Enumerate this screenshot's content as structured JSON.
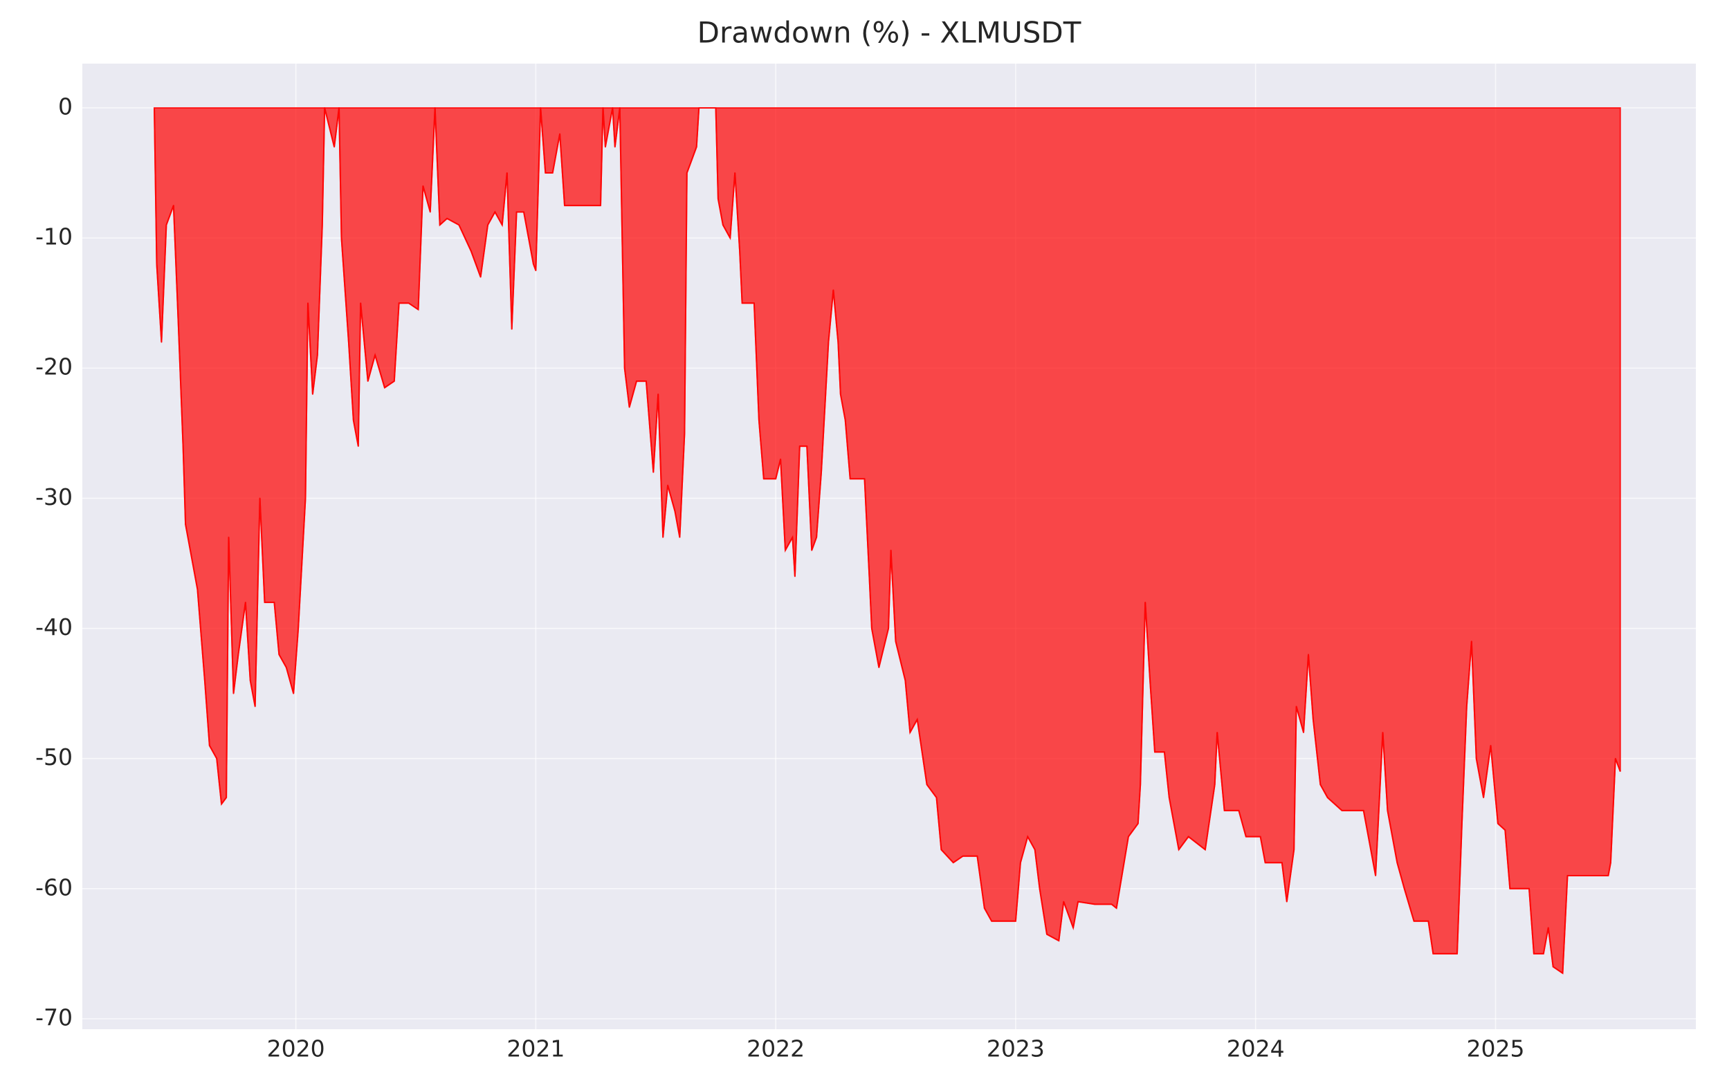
{
  "chart_data": {
    "type": "area",
    "title": "Drawdown (%) - XLMUSDT",
    "x": [
      2019.41,
      2019.42,
      2019.44,
      2019.46,
      2019.49,
      2019.51,
      2019.53,
      2019.54,
      2019.57,
      2019.59,
      2019.62,
      2019.64,
      2019.67,
      2019.69,
      2019.71,
      2019.72,
      2019.74,
      2019.76,
      2019.79,
      2019.81,
      2019.83,
      2019.85,
      2019.87,
      2019.91,
      2019.93,
      2019.96,
      2019.99,
      2020.01,
      2020.04,
      2020.05,
      2020.07,
      2020.09,
      2020.11,
      2020.12,
      2020.16,
      2020.18,
      2020.19,
      2020.22,
      2020.24,
      2020.26,
      2020.27,
      2020.3,
      2020.33,
      2020.37,
      2020.41,
      2020.43,
      2020.47,
      2020.51,
      2020.53,
      2020.56,
      2020.58,
      2020.6,
      2020.63,
      2020.68,
      2020.73,
      2020.77,
      2020.8,
      2020.83,
      2020.86,
      2020.88,
      2020.9,
      2020.92,
      2020.95,
      2020.99,
      2021.0,
      2021.02,
      2021.04,
      2021.07,
      2021.1,
      2021.12,
      2021.19,
      2021.27,
      2021.28,
      2021.29,
      2021.32,
      2021.33,
      2021.35,
      2021.37,
      2021.39,
      2021.42,
      2021.46,
      2021.49,
      2021.51,
      2021.53,
      2021.55,
      2021.58,
      2021.6,
      2021.62,
      2021.63,
      2021.65,
      2021.67,
      2021.68,
      2021.75,
      2021.76,
      2021.78,
      2021.81,
      2021.83,
      2021.85,
      2021.86,
      2021.91,
      2021.93,
      2021.95,
      2022.0,
      2022.02,
      2022.04,
      2022.07,
      2022.08,
      2022.1,
      2022.13,
      2022.15,
      2022.17,
      2022.19,
      2022.22,
      2022.24,
      2022.26,
      2022.27,
      2022.29,
      2022.31,
      2022.37,
      2022.39,
      2022.4,
      2022.43,
      2022.47,
      2022.48,
      2022.5,
      2022.54,
      2022.56,
      2022.59,
      2022.63,
      2022.67,
      2022.69,
      2022.74,
      2022.78,
      2022.84,
      2022.87,
      2022.9,
      2023.0,
      2023.02,
      2023.05,
      2023.08,
      2023.1,
      2023.13,
      2023.18,
      2023.2,
      2023.24,
      2023.26,
      2023.33,
      2023.4,
      2023.42,
      2023.47,
      2023.51,
      2023.52,
      2023.54,
      2023.56,
      2023.58,
      2023.62,
      2023.64,
      2023.68,
      2023.72,
      2023.79,
      2023.83,
      2023.84,
      2023.87,
      2023.93,
      2023.96,
      2024.02,
      2024.04,
      2024.11,
      2024.13,
      2024.16,
      2024.17,
      2024.2,
      2024.22,
      2024.24,
      2024.27,
      2024.3,
      2024.36,
      2024.45,
      2024.47,
      2024.5,
      2024.53,
      2024.55,
      2024.59,
      2024.62,
      2024.66,
      2024.72,
      2024.74,
      2024.84,
      2024.86,
      2024.88,
      2024.9,
      2024.92,
      2024.95,
      2024.98,
      2025.01,
      2025.04,
      2025.06,
      2025.14,
      2025.16,
      2025.2,
      2025.22,
      2025.24,
      2025.28,
      2025.3,
      2025.47,
      2025.48,
      2025.5,
      2025.52
    ],
    "values": [
      0,
      -12,
      -18,
      -9,
      -7.5,
      -16.5,
      -26,
      -32,
      -35,
      -37,
      -44,
      -49,
      -50,
      -53.5,
      -53,
      -33,
      -45,
      -42,
      -38,
      -44,
      -46,
      -30,
      -38,
      -38,
      -42,
      -43,
      -45,
      -40,
      -30,
      -15,
      -22,
      -19,
      -9,
      0,
      -3,
      0,
      -10,
      -18,
      -24,
      -26,
      -15,
      -21,
      -19,
      -21.5,
      -21,
      -15,
      -15,
      -15.5,
      -6,
      -8,
      0,
      -9,
      -8.5,
      -9,
      -11,
      -13,
      -9,
      -8,
      -9,
      -5,
      -17,
      -8,
      -8,
      -12,
      -12.5,
      0,
      -5,
      -5,
      -2,
      -7.5,
      -7.5,
      -7.5,
      0,
      -3,
      0,
      -3,
      0,
      -20,
      -23,
      -21,
      -21,
      -28,
      -22,
      -33,
      -29,
      -31,
      -33,
      -25,
      -5,
      -4,
      -3,
      0,
      0,
      -7,
      -9,
      -10,
      -5,
      -11,
      -15,
      -15,
      -24,
      -28.5,
      -28.5,
      -27,
      -34,
      -33,
      -36,
      -26,
      -26,
      -34,
      -33,
      -28,
      -18,
      -14,
      -18,
      -22,
      -24,
      -28.5,
      -28.5,
      -36,
      -40,
      -43,
      -40,
      -34,
      -41,
      -44,
      -48,
      -47,
      -52,
      -53,
      -57,
      -58,
      -57.5,
      -57.5,
      -61.5,
      -62.5,
      -62.5,
      -58,
      -56,
      -57,
      -60,
      -63.5,
      -64,
      -61,
      -63,
      -61,
      -61.2,
      -61.2,
      -61.5,
      -56,
      -55,
      -52,
      -38,
      -44,
      -49.5,
      -49.5,
      -53,
      -57,
      -56,
      -57,
      -52,
      -48,
      -54,
      -54,
      -56,
      -56,
      -58,
      -58,
      -61,
      -57,
      -46,
      -48,
      -42,
      -47,
      -52,
      -53,
      -54,
      -54,
      -56,
      -59,
      -48,
      -54,
      -58,
      -60,
      -62.5,
      -62.5,
      -65,
      -65,
      -55,
      -46,
      -41,
      -50,
      -53,
      -49,
      -55,
      -55.5,
      -60,
      -60,
      -65,
      -65,
      -63,
      -66,
      -66.5,
      -59,
      -59,
      -58,
      -50,
      -51
    ],
    "color": "#ff0000",
    "xlim": [
      2019.11,
      2025.835
    ],
    "xticks": [
      2020,
      2021,
      2022,
      2023,
      2024,
      2025
    ],
    "ylim": [
      -70.8,
      3.4
    ],
    "yticks": [
      -70,
      -60,
      -50,
      -40,
      -30,
      -20,
      -10,
      0
    ],
    "grid": true
  }
}
